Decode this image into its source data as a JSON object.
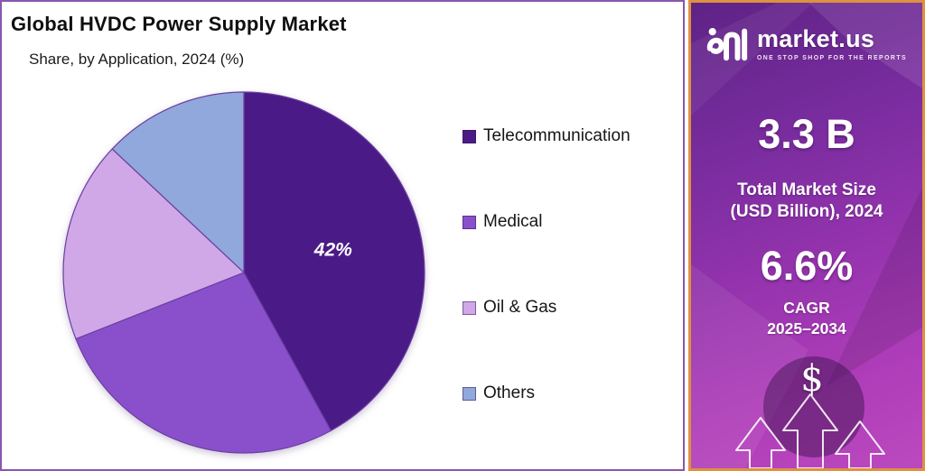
{
  "chart_data": {
    "type": "pie",
    "title": "Global HVDC Power Supply Market",
    "subtitle": "Share, by Application, 2024 (%)",
    "categories": [
      "Telecommunication",
      "Medical",
      "Oil & Gas",
      "Others"
    ],
    "values": [
      42,
      27,
      18,
      13
    ],
    "value_labels": [
      "42%",
      null,
      null,
      null
    ],
    "colors": [
      "#4a1a87",
      "#8a50cc",
      "#d0a8e8",
      "#90a8dc"
    ],
    "slice_stroke": "#6b3fa0",
    "start_angle_deg": 0,
    "direction": "clockwise",
    "legend_position": "right"
  },
  "sidebar": {
    "brand": {
      "name": "market.us",
      "tagline": "ONE STOP SHOP FOR THE REPORTS",
      "logo_icon": "market-us-logo"
    },
    "market_size": {
      "value": "3.3 B",
      "label_line1": "Total Market Size",
      "label_line2": "(USD Billion), 2024"
    },
    "cagr": {
      "value": "6.6%",
      "label_line1": "CAGR",
      "label_line2": "2025–2034"
    },
    "dollar_symbol": "$",
    "colors": {
      "background_top": "#5e2386",
      "background_bottom": "#bb49be",
      "border": "#df9140"
    }
  },
  "panel": {
    "border_color": "#8757ad",
    "background": "#ffffff"
  }
}
